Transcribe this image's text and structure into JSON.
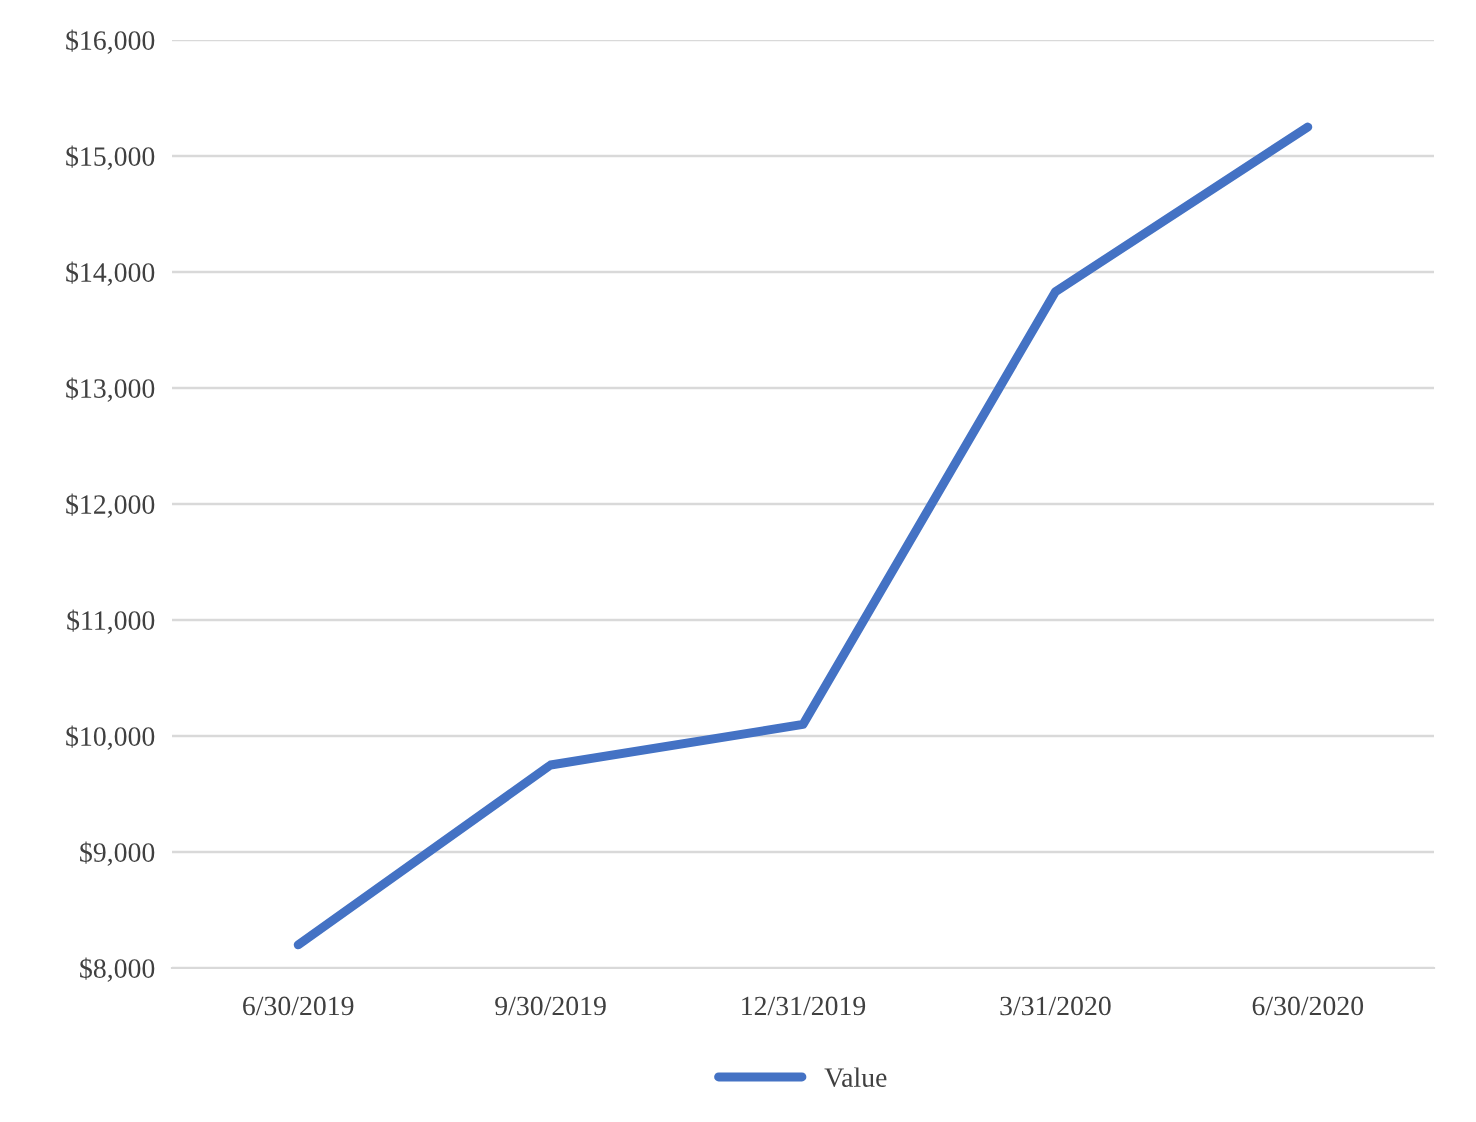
{
  "chart_data": {
    "type": "line",
    "categories": [
      "6/30/2019",
      "9/30/2019",
      "12/31/2019",
      "3/31/2020",
      "6/30/2020"
    ],
    "series": [
      {
        "name": "Value",
        "color": "#4472c4",
        "values": [
          8200,
          9750,
          10100,
          13830,
          15250
        ]
      }
    ],
    "ylim": [
      8000,
      16000
    ],
    "yticks": [
      {
        "value": 8000,
        "label": "$8,000"
      },
      {
        "value": 9000,
        "label": "$9,000"
      },
      {
        "value": 10000,
        "label": "$10,000"
      },
      {
        "value": 11000,
        "label": "$11,000"
      },
      {
        "value": 12000,
        "label": "$12,000"
      },
      {
        "value": 13000,
        "label": "$13,000"
      },
      {
        "value": 14000,
        "label": "$14,000"
      },
      {
        "value": 15000,
        "label": "$15,000"
      },
      {
        "value": 16000,
        "label": "$16,000"
      }
    ],
    "grid": "y",
    "legend": "bottom",
    "marker": "none",
    "line_style": "solid"
  }
}
